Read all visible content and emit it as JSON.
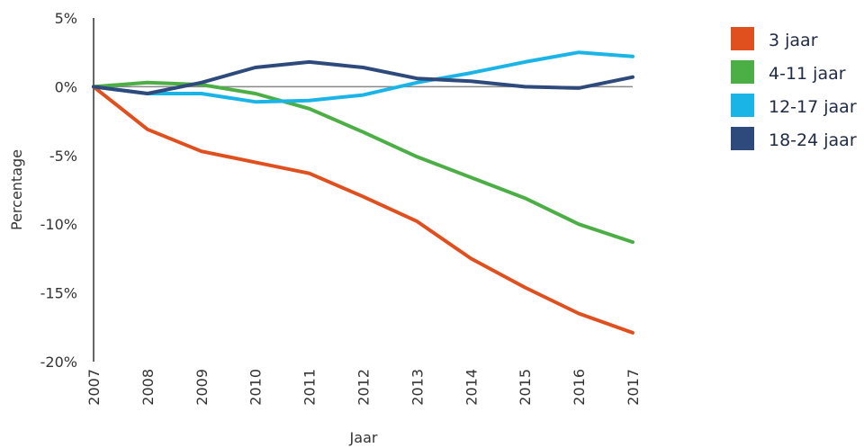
{
  "chart_data": {
    "type": "line",
    "xlabel": "Jaar",
    "ylabel": "Percentage",
    "x": [
      2007,
      2008,
      2009,
      2010,
      2011,
      2012,
      2013,
      2014,
      2015,
      2016,
      2017
    ],
    "x_tick_labels": [
      "2007",
      "2008",
      "2009",
      "2010",
      "2011",
      "2012",
      "2013",
      "2014",
      "2015",
      "2016",
      "2017"
    ],
    "ylim": [
      -20,
      5
    ],
    "y_ticks": [
      5,
      0,
      -5,
      -10,
      -15,
      -20
    ],
    "y_tick_labels": [
      "5%",
      "0%",
      "-5%",
      "-10%",
      "-15%",
      "-20%"
    ],
    "zero_line": true,
    "grid": false,
    "legend_position": "right",
    "series": [
      {
        "name": "3 jaar",
        "color": "#e0501e",
        "values": [
          0,
          -3.1,
          -4.7,
          -5.5,
          -6.3,
          -8.0,
          -9.8,
          -12.5,
          -14.6,
          -16.5,
          -17.9
        ]
      },
      {
        "name": "4-11 jaar",
        "color": "#4caf45",
        "values": [
          0,
          0.3,
          0.15,
          -0.5,
          -1.6,
          -3.3,
          -5.1,
          -6.6,
          -8.1,
          -10.0,
          -11.3
        ]
      },
      {
        "name": "12-17 jaar",
        "color": "#1ab4e6",
        "values": [
          0,
          -0.5,
          -0.5,
          -1.1,
          -1.0,
          -0.6,
          0.3,
          1.0,
          1.8,
          2.5,
          2.2
        ]
      },
      {
        "name": "18-24 jaar",
        "color": "#2e4a7d",
        "values": [
          0,
          -0.5,
          0.3,
          1.4,
          1.8,
          1.4,
          0.6,
          0.4,
          0.0,
          -0.1,
          0.7
        ]
      }
    ]
  }
}
